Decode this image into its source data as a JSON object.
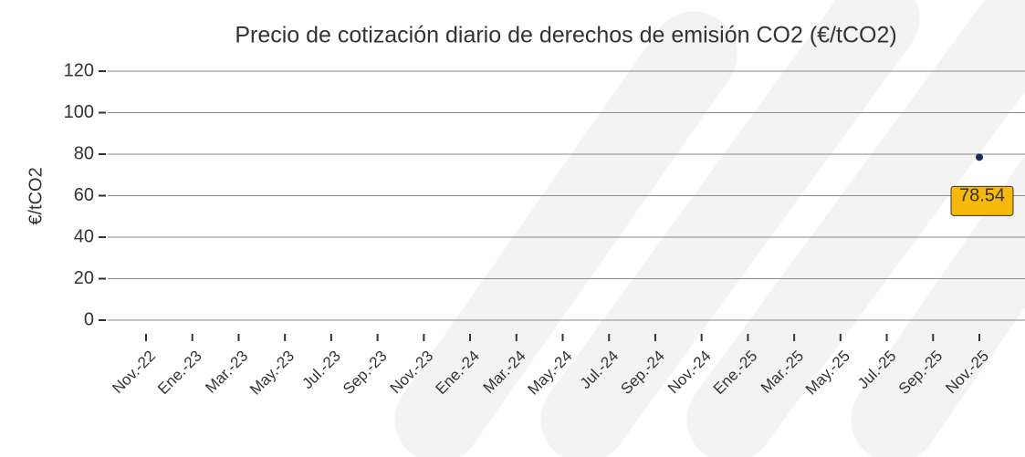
{
  "chart_data": {
    "type": "line",
    "title": "Precio de cotización diario de derechos de emisión CO2 (€/tCO2)",
    "y_label": "€/tCO2",
    "categories": [
      "Nov.-22",
      "Ene.-23",
      "Mar.-23",
      "May.-23",
      "Jul.-23",
      "Sep.-23",
      "Nov.-23",
      "Ene.-24",
      "Mar.-24",
      "May.-24",
      "Jul.-24",
      "Sep.-24",
      "Nov.-24",
      "Ene.-25",
      "Mar.-25",
      "May.-25",
      "Jul.-25",
      "Sep.-25",
      "Nov.-25"
    ],
    "series": [
      {
        "name": "Precio",
        "color": "#1a2a5e",
        "values": [
          null,
          null,
          null,
          null,
          null,
          null,
          null,
          null,
          null,
          null,
          null,
          null,
          null,
          null,
          null,
          null,
          null,
          null,
          78.54
        ]
      }
    ],
    "label_color": "#f5b80b",
    "ylim": [
      0,
      120
    ],
    "yticks": [
      0,
      20,
      40,
      60,
      80,
      100,
      120
    ],
    "grid": true
  }
}
